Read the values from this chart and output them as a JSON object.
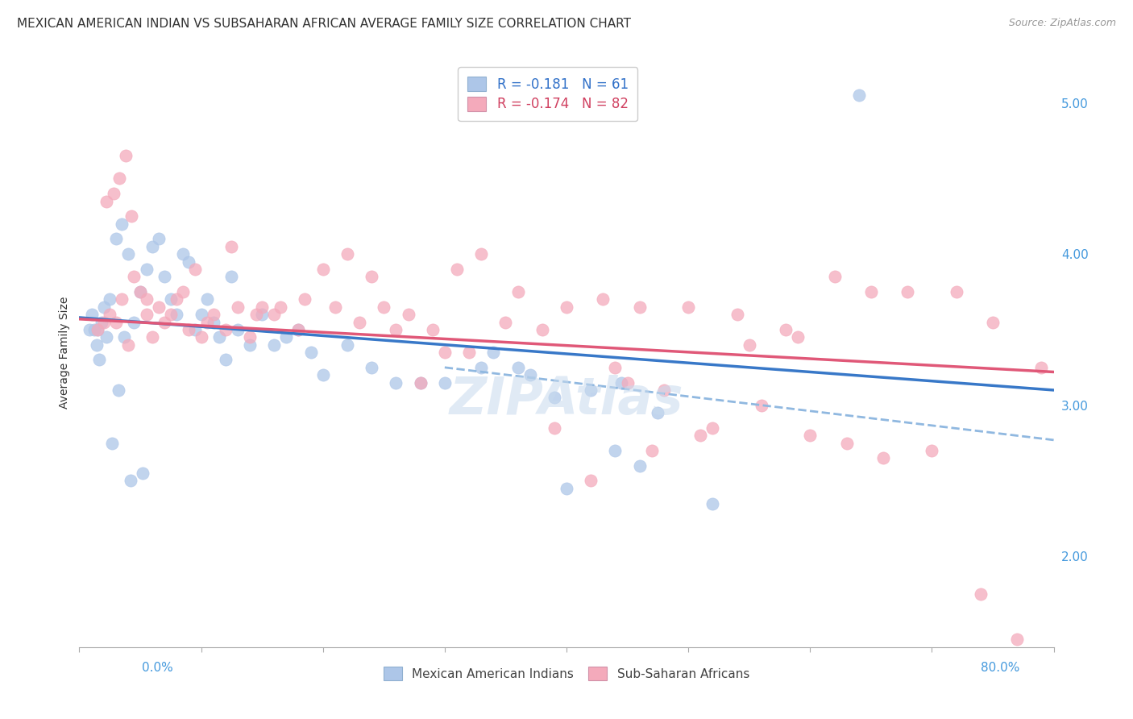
{
  "title": "MEXICAN AMERICAN INDIAN VS SUBSAHARAN AFRICAN AVERAGE FAMILY SIZE CORRELATION CHART",
  "source": "Source: ZipAtlas.com",
  "ylabel": "Average Family Size",
  "right_yticks": [
    2.0,
    3.0,
    4.0,
    5.0
  ],
  "legend_blue_r": "R = -0.181",
  "legend_blue_n": "N = 61",
  "legend_pink_r": "R = -0.174",
  "legend_pink_n": "N = 82",
  "legend_blue_color": "#adc6e8",
  "legend_pink_color": "#f4aabb",
  "dot_blue_color": "#adc6e8",
  "dot_pink_color": "#f4aabb",
  "trend_blue_color": "#3878c8",
  "trend_pink_color": "#e05878",
  "trend_dashed_color": "#90b8e0",
  "blue_scatter_x": [
    1.5,
    2.0,
    2.5,
    3.0,
    3.5,
    4.0,
    4.5,
    5.0,
    5.5,
    6.0,
    6.5,
    7.0,
    7.5,
    8.0,
    8.5,
    9.0,
    9.5,
    10.0,
    10.5,
    11.0,
    11.5,
    12.0,
    12.5,
    13.0,
    14.0,
    15.0,
    16.0,
    17.0,
    18.0,
    19.0,
    20.0,
    22.0,
    24.0,
    26.0,
    28.0,
    30.0,
    33.0,
    36.0,
    39.0,
    42.0,
    44.0,
    46.0,
    34.0,
    37.0,
    40.0,
    44.5,
    47.5,
    52.0,
    64.0,
    0.8,
    1.0,
    1.2,
    1.4,
    1.6,
    1.8,
    2.2,
    2.7,
    3.2,
    3.7,
    4.2,
    5.2
  ],
  "blue_scatter_y": [
    3.5,
    3.65,
    3.7,
    4.1,
    4.2,
    4.0,
    3.55,
    3.75,
    3.9,
    4.05,
    4.1,
    3.85,
    3.7,
    3.6,
    4.0,
    3.95,
    3.5,
    3.6,
    3.7,
    3.55,
    3.45,
    3.3,
    3.85,
    3.5,
    3.4,
    3.6,
    3.4,
    3.45,
    3.5,
    3.35,
    3.2,
    3.4,
    3.25,
    3.15,
    3.15,
    3.15,
    3.25,
    3.25,
    3.05,
    3.1,
    2.7,
    2.6,
    3.35,
    3.2,
    2.45,
    3.15,
    2.95,
    2.35,
    5.05,
    3.5,
    3.6,
    3.5,
    3.4,
    3.3,
    3.55,
    3.45,
    2.75,
    3.1,
    3.45,
    2.5,
    2.55
  ],
  "pink_scatter_x": [
    1.5,
    2.0,
    2.5,
    3.0,
    3.5,
    4.0,
    4.5,
    5.0,
    5.5,
    6.0,
    7.0,
    8.0,
    9.0,
    10.0,
    11.0,
    12.0,
    13.0,
    14.0,
    15.0,
    16.0,
    18.0,
    20.0,
    22.0,
    24.0,
    26.0,
    28.0,
    30.0,
    32.0,
    35.0,
    38.0,
    40.0,
    43.0,
    46.0,
    50.0,
    54.0,
    58.0,
    62.0,
    65.0,
    68.0,
    72.0,
    75.0,
    79.0,
    2.2,
    2.8,
    3.3,
    3.8,
    4.3,
    5.5,
    6.5,
    7.5,
    8.5,
    9.5,
    10.5,
    12.5,
    14.5,
    16.5,
    18.5,
    21.0,
    23.0,
    25.0,
    27.0,
    29.0,
    31.0,
    33.0,
    36.0,
    39.0,
    42.0,
    45.0,
    48.0,
    52.0,
    56.0,
    60.0,
    63.0,
    66.0,
    70.0,
    74.0,
    77.0,
    44.0,
    47.0,
    51.0,
    55.0,
    59.0
  ],
  "pink_scatter_y": [
    3.5,
    3.55,
    3.6,
    3.55,
    3.7,
    3.4,
    3.85,
    3.75,
    3.6,
    3.45,
    3.55,
    3.7,
    3.5,
    3.45,
    3.6,
    3.5,
    3.65,
    3.45,
    3.65,
    3.6,
    3.5,
    3.9,
    4.0,
    3.85,
    3.5,
    3.15,
    3.35,
    3.35,
    3.55,
    3.5,
    3.65,
    3.7,
    3.65,
    3.65,
    3.6,
    3.5,
    3.85,
    3.75,
    3.75,
    3.75,
    3.55,
    3.25,
    4.35,
    4.4,
    4.5,
    4.65,
    4.25,
    3.7,
    3.65,
    3.6,
    3.75,
    3.9,
    3.55,
    4.05,
    3.6,
    3.65,
    3.7,
    3.65,
    3.55,
    3.65,
    3.6,
    3.5,
    3.9,
    4.0,
    3.75,
    2.85,
    2.5,
    3.15,
    3.1,
    2.85,
    3.0,
    2.8,
    2.75,
    2.65,
    2.7,
    1.75,
    1.45,
    3.25,
    2.7,
    2.8,
    3.4,
    3.45
  ],
  "blue_trend_x0": 0.0,
  "blue_trend_x1": 80.0,
  "blue_trend_y0": 3.58,
  "blue_trend_y1": 3.1,
  "pink_trend_x0": 0.0,
  "pink_trend_x1": 80.0,
  "pink_trend_y0": 3.57,
  "pink_trend_y1": 3.22,
  "dashed_x0": 30.0,
  "dashed_x1": 80.0,
  "dashed_y0": 3.25,
  "dashed_y1": 2.77,
  "xlim_min": 0,
  "xlim_max": 80,
  "ylim_min": 1.4,
  "ylim_max": 5.3,
  "watermark": "ZIPAtlas",
  "background_color": "#ffffff",
  "grid_color": "#d8d8d8",
  "title_fontsize": 11,
  "source_fontsize": 9,
  "axis_label_fontsize": 10,
  "tick_label_fontsize": 10,
  "legend_label": "Mexican American Indians",
  "legend_label2": "Sub-Saharan Africans"
}
